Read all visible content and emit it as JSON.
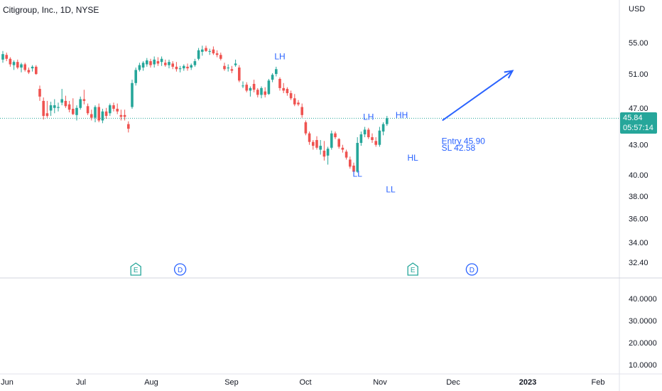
{
  "header": {
    "title": "Citigroup, Inc., 1D, NYSE"
  },
  "price_axis": {
    "currency": "USD"
  },
  "last_price": {
    "value": "45.84",
    "countdown": "05:57:14"
  },
  "colors": {
    "up": "#26a69a",
    "down": "#ef5350",
    "annotation": "#2962ff",
    "earnings_up": "#26a69a",
    "earnings_future": "#e91e63"
  },
  "chart_data": [
    {
      "type": "candlestick",
      "title": "Citigroup, Inc., 1D, NYSE",
      "x_axis": {
        "ticks": [
          "Jun",
          "Jul",
          "Aug",
          "Sep",
          "Oct",
          "Nov",
          "Dec",
          "2023",
          "Feb"
        ]
      },
      "y_axis": {
        "unit": "USD",
        "ticks": [
          "55.00",
          "51.00",
          "47.00",
          "43.00",
          "40.00",
          "38.00",
          "36.00",
          "34.00",
          "32.40"
        ]
      },
      "series": [
        {
          "values": [
            {
              "o": 52.8,
              "h": 53.9,
              "l": 52.4,
              "c": 53.5
            },
            {
              "o": 53.4,
              "h": 53.7,
              "l": 52.6,
              "c": 52.9
            },
            {
              "o": 52.9,
              "h": 53.1,
              "l": 51.9,
              "c": 52.2
            },
            {
              "o": 52.1,
              "h": 52.7,
              "l": 51.5,
              "c": 52.5
            },
            {
              "o": 52.5,
              "h": 52.8,
              "l": 51.6,
              "c": 51.8
            },
            {
              "o": 51.8,
              "h": 52.4,
              "l": 51.2,
              "c": 52.2
            },
            {
              "o": 52.2,
              "h": 52.4,
              "l": 51.3,
              "c": 51.5
            },
            {
              "o": 51.5,
              "h": 51.8,
              "l": 51.0,
              "c": 51.2
            },
            {
              "o": 51.7,
              "h": 52.1,
              "l": 51.3,
              "c": 51.9
            },
            {
              "o": 51.9,
              "h": 52.1,
              "l": 50.9,
              "c": 51.0
            },
            {
              "o": 49.2,
              "h": 49.6,
              "l": 47.8,
              "c": 48.3
            },
            {
              "o": 47.8,
              "h": 48.2,
              "l": 45.7,
              "c": 46.1
            },
            {
              "o": 46.4,
              "h": 47.8,
              "l": 45.9,
              "c": 46.1
            },
            {
              "o": 46.7,
              "h": 47.7,
              "l": 46.1,
              "c": 47.3
            },
            {
              "o": 47.0,
              "h": 48.0,
              "l": 46.4,
              "c": 47.3
            },
            {
              "o": 47.0,
              "h": 47.6,
              "l": 46.6,
              "c": 47.1
            },
            {
              "o": 47.6,
              "h": 49.2,
              "l": 47.3,
              "c": 48.0
            },
            {
              "o": 47.8,
              "h": 48.4,
              "l": 47.0,
              "c": 47.2
            },
            {
              "o": 47.4,
              "h": 47.8,
              "l": 46.5,
              "c": 46.8
            },
            {
              "o": 46.9,
              "h": 48.1,
              "l": 46.2,
              "c": 46.3
            },
            {
              "o": 46.2,
              "h": 47.3,
              "l": 45.6,
              "c": 47.0
            },
            {
              "o": 47.0,
              "h": 48.3,
              "l": 46.8,
              "c": 48.0
            },
            {
              "o": 48.0,
              "h": 49.1,
              "l": 47.4,
              "c": 47.8
            },
            {
              "o": 47.2,
              "h": 47.5,
              "l": 46.2,
              "c": 46.4
            },
            {
              "o": 46.3,
              "h": 46.8,
              "l": 45.6,
              "c": 45.9
            },
            {
              "o": 45.9,
              "h": 47.3,
              "l": 45.4,
              "c": 47.1
            },
            {
              "o": 47.1,
              "h": 47.5,
              "l": 45.4,
              "c": 45.6
            },
            {
              "o": 45.6,
              "h": 46.9,
              "l": 45.3,
              "c": 46.6
            },
            {
              "o": 46.6,
              "h": 47.0,
              "l": 45.8,
              "c": 46.1
            },
            {
              "o": 46.4,
              "h": 47.5,
              "l": 46.1,
              "c": 47.3
            },
            {
              "o": 47.3,
              "h": 47.6,
              "l": 46.6,
              "c": 46.9
            },
            {
              "o": 46.9,
              "h": 47.5,
              "l": 46.3,
              "c": 46.6
            },
            {
              "o": 46.2,
              "h": 46.8,
              "l": 45.6,
              "c": 46.0
            },
            {
              "o": 46.2,
              "h": 46.8,
              "l": 45.6,
              "c": 46.0
            },
            {
              "o": 45.2,
              "h": 45.5,
              "l": 44.3,
              "c": 44.7
            },
            {
              "o": 47.1,
              "h": 50.3,
              "l": 46.9,
              "c": 49.9
            },
            {
              "o": 49.9,
              "h": 51.8,
              "l": 49.6,
              "c": 51.5
            },
            {
              "o": 51.5,
              "h": 52.4,
              "l": 51.3,
              "c": 52.1
            },
            {
              "o": 51.8,
              "h": 52.6,
              "l": 51.4,
              "c": 52.4
            },
            {
              "o": 52.2,
              "h": 53.0,
              "l": 51.9,
              "c": 52.7
            },
            {
              "o": 52.6,
              "h": 52.9,
              "l": 51.8,
              "c": 52.1
            },
            {
              "o": 52.2,
              "h": 53.2,
              "l": 51.8,
              "c": 52.8
            },
            {
              "o": 52.6,
              "h": 53.1,
              "l": 52.0,
              "c": 52.3
            },
            {
              "o": 52.5,
              "h": 53.2,
              "l": 52.0,
              "c": 52.9
            },
            {
              "o": 52.4,
              "h": 52.8,
              "l": 51.9,
              "c": 52.1
            },
            {
              "o": 52.1,
              "h": 52.8,
              "l": 51.7,
              "c": 52.5
            },
            {
              "o": 52.3,
              "h": 52.6,
              "l": 51.6,
              "c": 51.9
            },
            {
              "o": 51.9,
              "h": 52.5,
              "l": 51.3,
              "c": 51.6
            },
            {
              "o": 51.6,
              "h": 52.0,
              "l": 51.2,
              "c": 51.7
            },
            {
              "o": 51.7,
              "h": 52.2,
              "l": 51.4,
              "c": 52.0
            },
            {
              "o": 51.9,
              "h": 52.3,
              "l": 51.4,
              "c": 51.7
            },
            {
              "o": 51.8,
              "h": 52.3,
              "l": 51.5,
              "c": 52.1
            },
            {
              "o": 52.1,
              "h": 52.9,
              "l": 51.9,
              "c": 52.6
            },
            {
              "o": 52.9,
              "h": 54.3,
              "l": 52.7,
              "c": 54.0
            },
            {
              "o": 53.8,
              "h": 54.6,
              "l": 53.3,
              "c": 54.1
            },
            {
              "o": 54.3,
              "h": 54.6,
              "l": 53.8,
              "c": 53.9
            },
            {
              "o": 53.8,
              "h": 54.2,
              "l": 53.4,
              "c": 53.9
            },
            {
              "o": 54.1,
              "h": 54.5,
              "l": 53.4,
              "c": 53.6
            },
            {
              "o": 53.6,
              "h": 54.0,
              "l": 53.1,
              "c": 53.4
            },
            {
              "o": 53.4,
              "h": 53.7,
              "l": 52.7,
              "c": 52.9
            },
            {
              "o": 52.0,
              "h": 52.4,
              "l": 51.4,
              "c": 51.6
            },
            {
              "o": 51.7,
              "h": 52.2,
              "l": 51.3,
              "c": 51.8
            },
            {
              "o": 51.6,
              "h": 52.0,
              "l": 51.1,
              "c": 51.4
            },
            {
              "o": 52.1,
              "h": 52.8,
              "l": 51.9,
              "c": 52.3
            },
            {
              "o": 51.8,
              "h": 52.1,
              "l": 50.0,
              "c": 50.2
            },
            {
              "o": 49.6,
              "h": 50.1,
              "l": 49.3,
              "c": 49.6
            },
            {
              "o": 49.7,
              "h": 50.0,
              "l": 48.8,
              "c": 49.0
            },
            {
              "o": 49.0,
              "h": 49.5,
              "l": 48.3,
              "c": 49.3
            },
            {
              "o": 49.8,
              "h": 50.3,
              "l": 48.8,
              "c": 49.1
            },
            {
              "o": 49.1,
              "h": 49.3,
              "l": 48.2,
              "c": 48.5
            },
            {
              "o": 48.5,
              "h": 49.5,
              "l": 48.1,
              "c": 49.3
            },
            {
              "o": 48.9,
              "h": 49.4,
              "l": 48.2,
              "c": 48.5
            },
            {
              "o": 48.6,
              "h": 50.4,
              "l": 48.5,
              "c": 50.2
            },
            {
              "o": 50.3,
              "h": 51.1,
              "l": 50.0,
              "c": 50.9
            },
            {
              "o": 51.0,
              "h": 51.9,
              "l": 50.7,
              "c": 51.6
            },
            {
              "o": 50.4,
              "h": 50.6,
              "l": 49.0,
              "c": 49.3
            },
            {
              "o": 49.3,
              "h": 49.9,
              "l": 48.7,
              "c": 49.0
            },
            {
              "o": 49.2,
              "h": 49.4,
              "l": 48.4,
              "c": 48.7
            },
            {
              "o": 48.7,
              "h": 49.0,
              "l": 47.9,
              "c": 48.1
            },
            {
              "o": 48.1,
              "h": 48.6,
              "l": 47.2,
              "c": 47.4
            },
            {
              "o": 47.6,
              "h": 47.9,
              "l": 47.2,
              "c": 47.4
            },
            {
              "o": 47.1,
              "h": 47.5,
              "l": 45.9,
              "c": 46.2
            },
            {
              "o": 45.4,
              "h": 45.6,
              "l": 44.0,
              "c": 44.2
            },
            {
              "o": 44.2,
              "h": 44.4,
              "l": 43.0,
              "c": 43.3
            },
            {
              "o": 43.3,
              "h": 43.5,
              "l": 42.5,
              "c": 42.9
            },
            {
              "o": 43.5,
              "h": 43.9,
              "l": 42.5,
              "c": 42.7
            },
            {
              "o": 42.5,
              "h": 43.5,
              "l": 42.0,
              "c": 42.9
            },
            {
              "o": 42.4,
              "h": 43.4,
              "l": 41.4,
              "c": 41.8
            },
            {
              "o": 41.9,
              "h": 42.8,
              "l": 41.0,
              "c": 42.6
            },
            {
              "o": 42.7,
              "h": 44.5,
              "l": 42.5,
              "c": 44.2
            },
            {
              "o": 44.2,
              "h": 44.4,
              "l": 43.6,
              "c": 43.8
            },
            {
              "o": 43.6,
              "h": 43.7,
              "l": 42.6,
              "c": 42.8
            },
            {
              "o": 42.7,
              "h": 43.0,
              "l": 42.2,
              "c": 42.5
            },
            {
              "o": 42.3,
              "h": 42.5,
              "l": 41.5,
              "c": 41.7
            },
            {
              "o": 41.5,
              "h": 41.8,
              "l": 40.6,
              "c": 40.8
            },
            {
              "o": 40.9,
              "h": 41.2,
              "l": 40.1,
              "c": 40.3
            },
            {
              "o": 40.3,
              "h": 43.8,
              "l": 40.2,
              "c": 43.2
            },
            {
              "o": 43.2,
              "h": 44.4,
              "l": 42.9,
              "c": 44.1
            },
            {
              "o": 44.1,
              "h": 44.9,
              "l": 43.8,
              "c": 44.6
            },
            {
              "o": 44.6,
              "h": 44.8,
              "l": 43.6,
              "c": 43.8
            },
            {
              "o": 43.8,
              "h": 44.2,
              "l": 43.2,
              "c": 43.5
            },
            {
              "o": 43.4,
              "h": 43.8,
              "l": 42.8,
              "c": 43.0
            },
            {
              "o": 43.0,
              "h": 44.9,
              "l": 42.8,
              "c": 44.5
            },
            {
              "o": 44.4,
              "h": 45.4,
              "l": 44.0,
              "c": 45.2
            },
            {
              "o": 45.2,
              "h": 46.1,
              "l": 45.0,
              "c": 45.84
            }
          ]
        }
      ],
      "annotations": [
        {
          "label": "LH",
          "bar": 75,
          "value": 52.3,
          "placement": "above"
        },
        {
          "label": "LH",
          "bar": 99,
          "value": 45.2,
          "placement": "above"
        },
        {
          "label": "LL",
          "bar": 96,
          "value": 40.8,
          "placement": "below"
        },
        {
          "label": "LL",
          "bar": 105,
          "value": 39.3,
          "placement": "below"
        },
        {
          "label": "HH",
          "bar": 108,
          "value": 45.4,
          "placement": "above"
        },
        {
          "label": "HL",
          "bar": 111,
          "value": 42.4,
          "placement": "below"
        },
        {
          "label": "Entry 45.90",
          "bar": 118,
          "value": 43.1,
          "placement": "text"
        },
        {
          "label": "SL 42.58",
          "bar": 118,
          "value": 42.4,
          "placement": "text"
        }
      ],
      "arrow": {
        "from": {
          "bar": 119,
          "value": 45.6
        },
        "to": {
          "bar": 138,
          "value": 51.4
        }
      },
      "event_markers": [
        {
          "label": "E",
          "bar": 36,
          "kind": "earnings"
        },
        {
          "label": "D",
          "bar": 48,
          "kind": "dividend"
        },
        {
          "label": "E",
          "bar": 111,
          "kind": "earnings"
        },
        {
          "label": "D",
          "bar": 127,
          "kind": "dividend"
        },
        {
          "label": "E",
          "bar": 181,
          "kind": "earnings-future"
        }
      ],
      "last_price_line": 45.84
    },
    {
      "type": "line",
      "title": "",
      "y_axis": {
        "ticks": [
          "40.0000",
          "30.0000",
          "20.0000",
          "10.0000"
        ]
      },
      "series": []
    }
  ]
}
